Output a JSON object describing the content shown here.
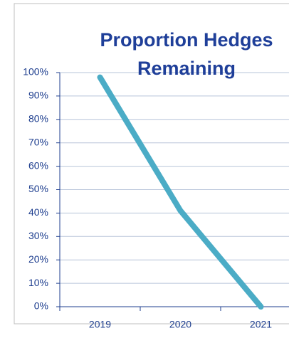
{
  "chart_data": {
    "type": "line",
    "title": "Proportion Hedges Remaining",
    "categories": [
      "2019",
      "2020",
      "2021"
    ],
    "series": [
      {
        "name": "Proportion Hedges Remaining",
        "color": "#4bacc6",
        "values": [
          98,
          41,
          0
        ]
      }
    ],
    "ylim": [
      0,
      100
    ],
    "yticks": [
      {
        "value": 0,
        "label": "0%"
      },
      {
        "value": 10,
        "label": "10%"
      },
      {
        "value": 20,
        "label": "20%"
      },
      {
        "value": 30,
        "label": "30%"
      },
      {
        "value": 40,
        "label": "40%"
      },
      {
        "value": 50,
        "label": "50%"
      },
      {
        "value": 60,
        "label": "60%"
      },
      {
        "value": 70,
        "label": "70%"
      },
      {
        "value": 80,
        "label": "80%"
      },
      {
        "value": 90,
        "label": "90%"
      },
      {
        "value": 100,
        "label": "100%"
      }
    ],
    "grid": true
  }
}
